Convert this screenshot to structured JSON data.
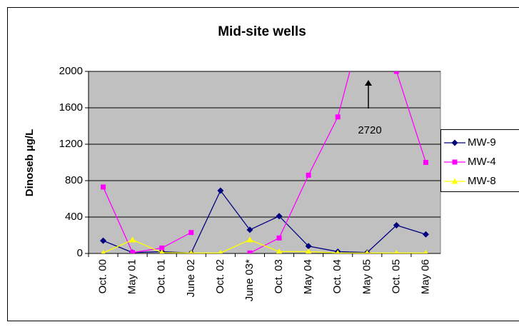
{
  "chart_data": {
    "type": "line",
    "title": "Mid-site wells",
    "y_label": "Dinoseb µg/L",
    "categories": [
      "Oct. 00",
      "May 01",
      "Oct. 01",
      "June 02",
      "Oct. 02",
      "June 03*",
      "Oct. 03",
      "May 04",
      "Oct. 04",
      "May 05",
      "Oct. 05",
      "May 06"
    ],
    "series": [
      {
        "name": "MW-9",
        "color": "#000080",
        "marker": "diamond",
        "values": [
          140,
          10,
          20,
          5,
          690,
          260,
          410,
          80,
          20,
          10,
          310,
          210
        ]
      },
      {
        "name": "MW-4",
        "color": "#ff00ff",
        "marker": "square",
        "values": [
          730,
          10,
          60,
          230,
          null,
          5,
          170,
          860,
          1500,
          2720,
          2000,
          1000
        ]
      },
      {
        "name": "MW-8",
        "color": "#ffff00",
        "marker": "triangle",
        "values": [
          5,
          150,
          10,
          5,
          5,
          150,
          20,
          20,
          5,
          5,
          5,
          5
        ]
      }
    ],
    "annotation": "2720",
    "ylim": [
      0,
      2000
    ],
    "yticks": [
      0,
      400,
      800,
      1200,
      1600,
      2000
    ],
    "grid": true,
    "legend": "right"
  }
}
